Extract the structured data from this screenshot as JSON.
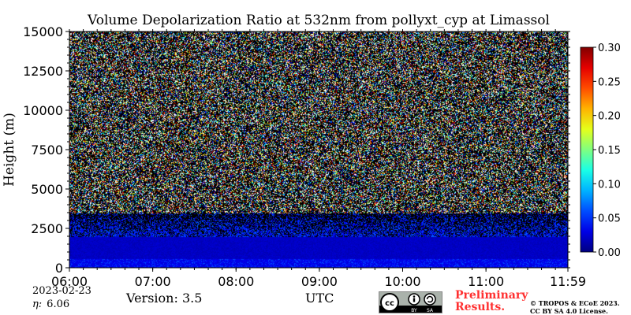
{
  "chart_data": {
    "type": "heatmap",
    "title": "Volume Depolarization Ratio at 532nm from pollyxt_cyp at Limassol",
    "ylabel": "Height (m)",
    "xlabel": "UTC",
    "ylim": [
      0,
      15000
    ],
    "yticks": [
      0,
      2500,
      5000,
      7500,
      10000,
      12500,
      15000
    ],
    "xlim": [
      "06:00",
      "11:59"
    ],
    "xticks": [
      "06:00",
      "07:00",
      "08:00",
      "09:00",
      "10:00",
      "11:00",
      "11:59"
    ],
    "colorbar": {
      "ticks": [
        "0.00",
        "0.05",
        "0.10",
        "0.15",
        "0.20",
        "0.25",
        "0.30"
      ],
      "range": [
        0,
        0.3
      ],
      "colormap": "jet"
    },
    "layers": [
      {
        "from": 0,
        "to": 600,
        "value": 0.03,
        "texture": "smooth"
      },
      {
        "from": 600,
        "to": 2000,
        "value": 0.02,
        "texture": "smooth"
      },
      {
        "from": 2000,
        "to": 3500,
        "value": 0.03,
        "texture": "mixed"
      },
      {
        "from": 3500,
        "to": 15000,
        "value": 0.1,
        "texture": "noise"
      }
    ],
    "grid": false
  },
  "footer": {
    "date": "2023-02-23",
    "eta_symbol": "η:",
    "eta_value": "6.06",
    "version": "Version: 3.5",
    "preliminary": [
      "Preliminary",
      "Results."
    ],
    "copyright": [
      "© TROPOS & ECoE 2023.",
      "CC BY SA 4.0 License."
    ],
    "license_badge_text": [
      "cc",
      "BY",
      "SA"
    ]
  },
  "colors": {
    "background_noise": "#000000",
    "boundary_layer": "#1f5fe0"
  }
}
